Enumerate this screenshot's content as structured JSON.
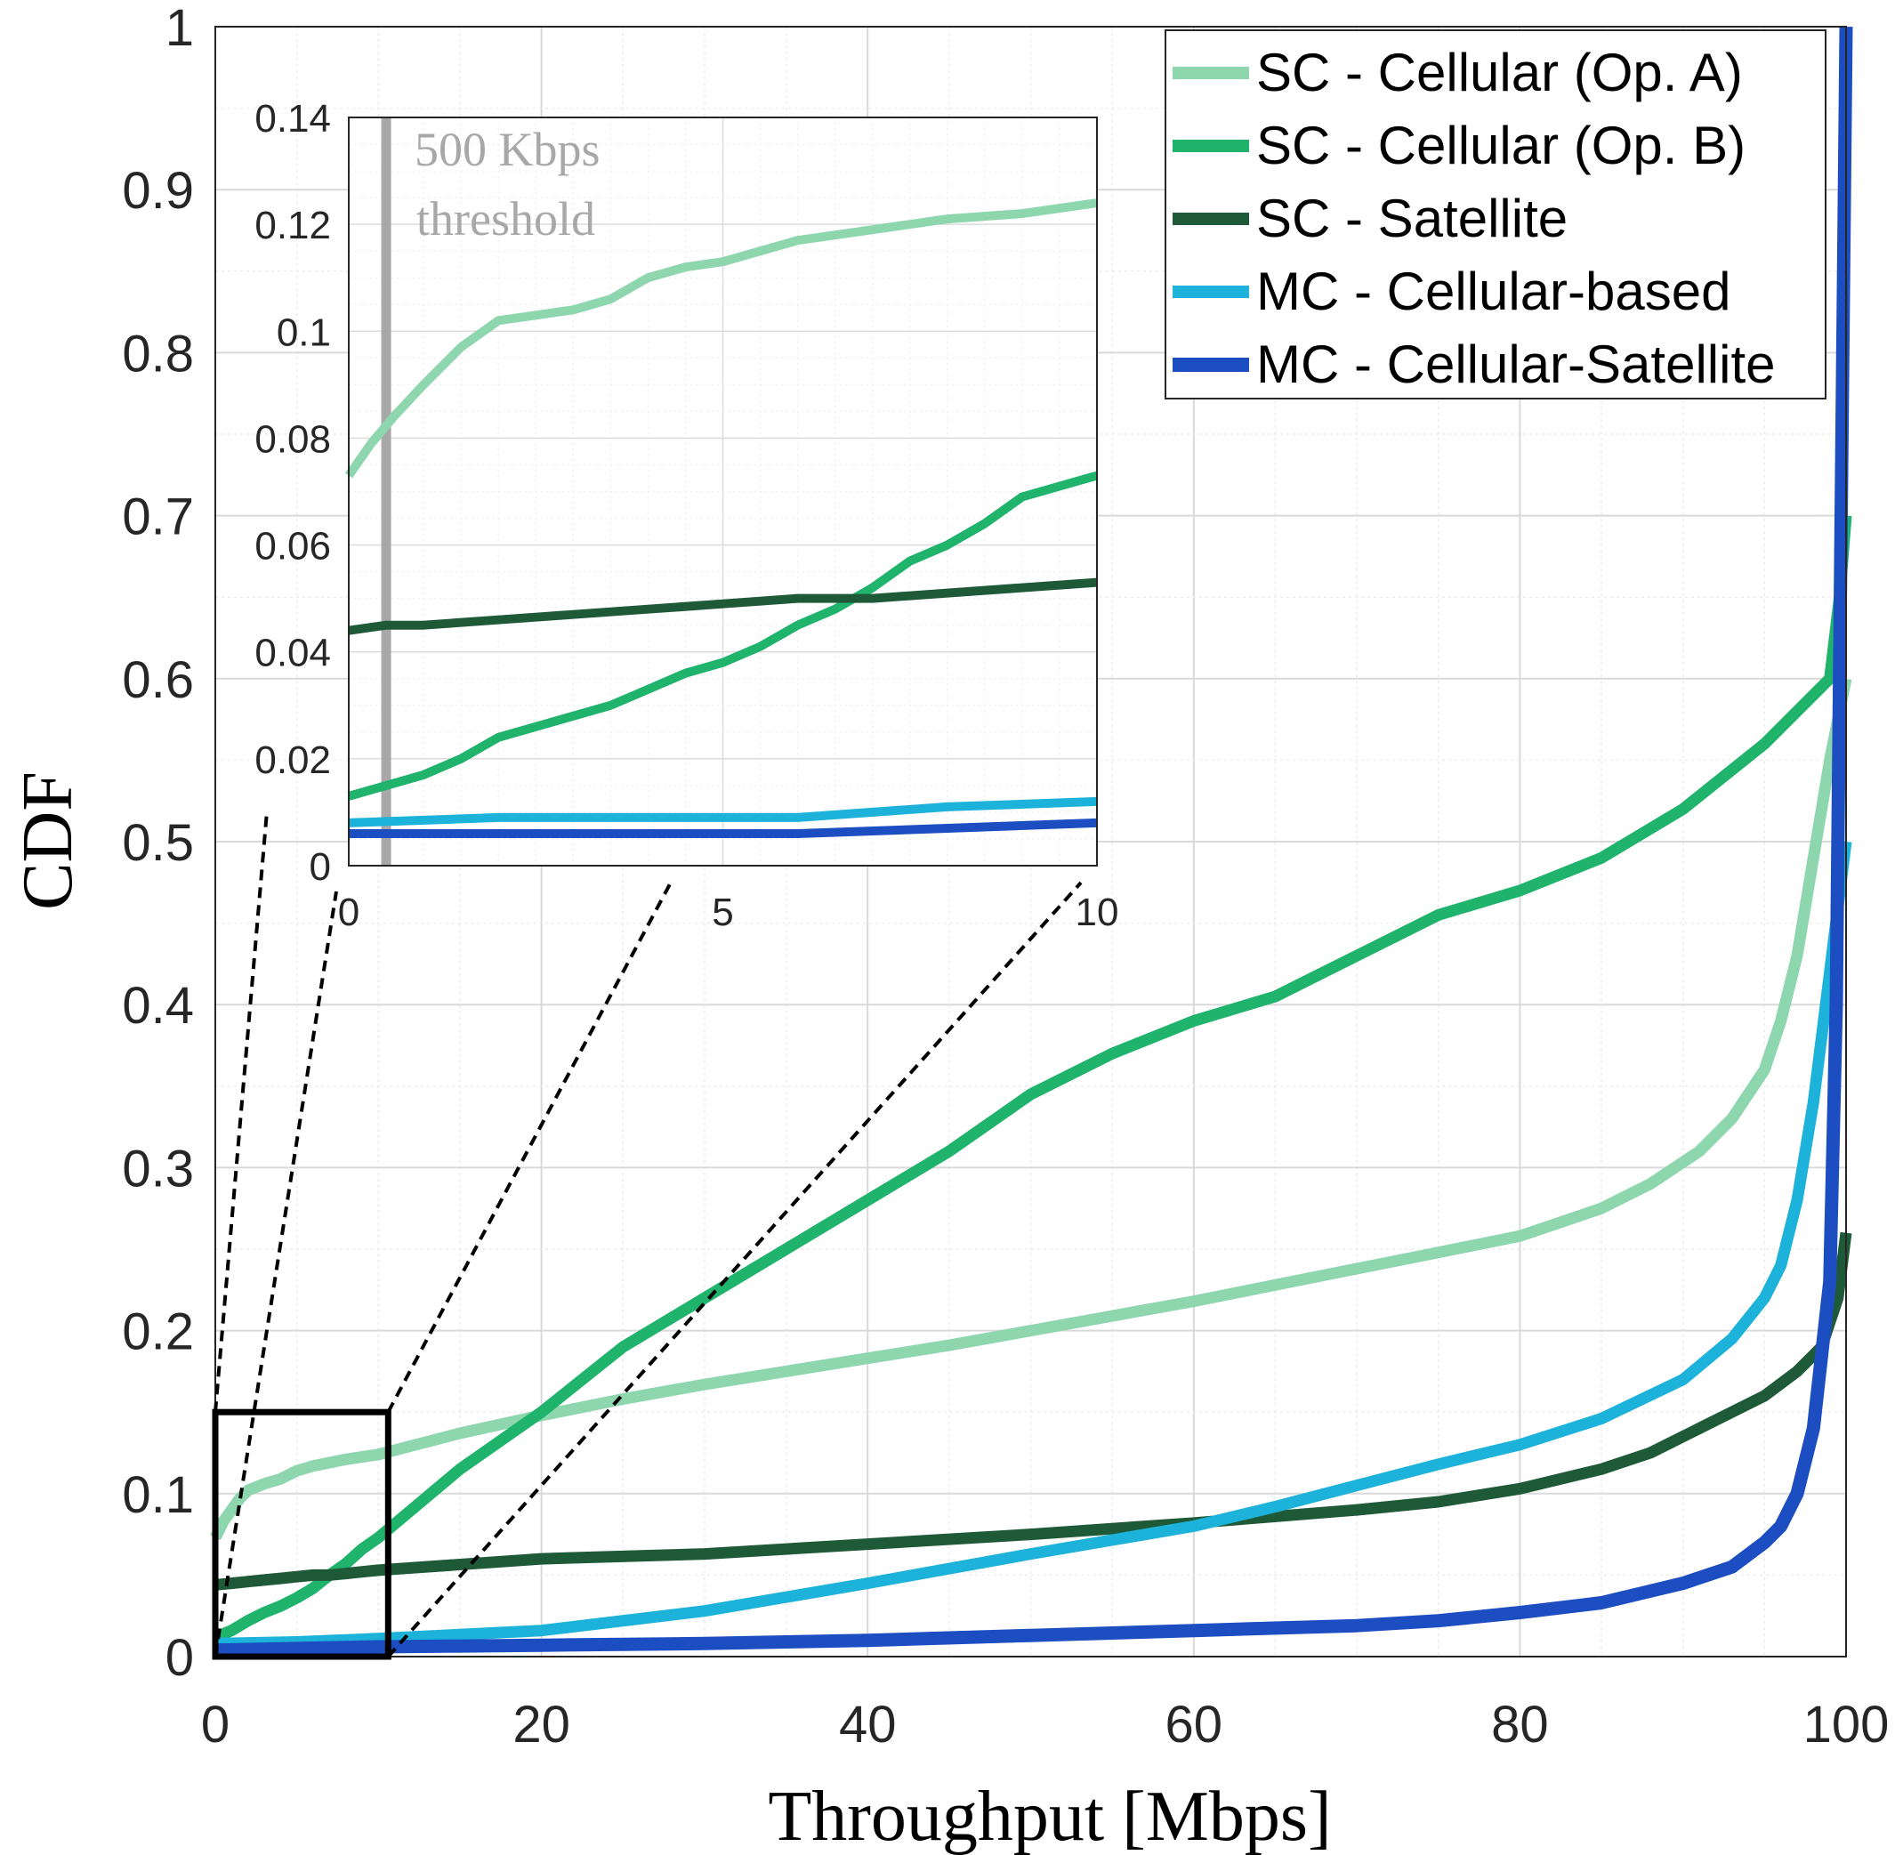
{
  "chart_data": [
    {
      "type": "line",
      "name": "main-plot",
      "xlabel": "Throughput [Mbps]",
      "ylabel": "CDF",
      "xlim": [
        0,
        100
      ],
      "ylim": [
        0,
        1
      ],
      "xticks": [
        "0",
        "20",
        "40",
        "60",
        "80",
        "100"
      ],
      "yticks": [
        "0",
        "0.1",
        "0.2",
        "0.3",
        "0.4",
        "0.5",
        "0.6",
        "0.7",
        "0.8",
        "0.9",
        "1"
      ],
      "grid": true,
      "legend_position": "top-right",
      "series": [
        {
          "name": "SC - Cellular (Op. A)",
          "color": "#8ed6ae",
          "points": [
            [
              0,
              0.073
            ],
            [
              0.5,
              0.083
            ],
            [
              1,
              0.09
            ],
            [
              1.5,
              0.097
            ],
            [
              2,
              0.102
            ],
            [
              3,
              0.106
            ],
            [
              4,
              0.109
            ],
            [
              5,
              0.114
            ],
            [
              6,
              0.117
            ],
            [
              7,
              0.119
            ],
            [
              8,
              0.121
            ],
            [
              10,
              0.124
            ],
            [
              15,
              0.137
            ],
            [
              20,
              0.148
            ],
            [
              25,
              0.158
            ],
            [
              30,
              0.167
            ],
            [
              35,
              0.175
            ],
            [
              40,
              0.183
            ],
            [
              45,
              0.191
            ],
            [
              50,
              0.2
            ],
            [
              55,
              0.209
            ],
            [
              60,
              0.218
            ],
            [
              65,
              0.228
            ],
            [
              70,
              0.238
            ],
            [
              75,
              0.248
            ],
            [
              80,
              0.258
            ],
            [
              85,
              0.275
            ],
            [
              88,
              0.29
            ],
            [
              91,
              0.31
            ],
            [
              93,
              0.33
            ],
            [
              95,
              0.36
            ],
            [
              96,
              0.39
            ],
            [
              97,
              0.43
            ],
            [
              98,
              0.49
            ],
            [
              99,
              0.55
            ],
            [
              100,
              0.6
            ]
          ]
        },
        {
          "name": "SC - Cellular (Op. B)",
          "color": "#1fb36c",
          "points": [
            [
              0,
              0.012
            ],
            [
              1,
              0.016
            ],
            [
              2,
              0.022
            ],
            [
              3,
              0.027
            ],
            [
              4,
              0.031
            ],
            [
              5,
              0.036
            ],
            [
              6,
              0.042
            ],
            [
              7,
              0.05
            ],
            [
              8,
              0.057
            ],
            [
              9,
              0.066
            ],
            [
              10,
              0.073
            ],
            [
              15,
              0.115
            ],
            [
              20,
              0.15
            ],
            [
              25,
              0.19
            ],
            [
              30,
              0.22
            ],
            [
              35,
              0.25
            ],
            [
              40,
              0.28
            ],
            [
              45,
              0.31
            ],
            [
              50,
              0.345
            ],
            [
              55,
              0.37
            ],
            [
              60,
              0.39
            ],
            [
              65,
              0.405
            ],
            [
              70,
              0.43
            ],
            [
              75,
              0.455
            ],
            [
              80,
              0.47
            ],
            [
              85,
              0.49
            ],
            [
              90,
              0.52
            ],
            [
              95,
              0.56
            ],
            [
              98,
              0.59
            ],
            [
              99,
              0.6
            ],
            [
              99.6,
              0.65
            ],
            [
              100,
              0.7
            ]
          ]
        },
        {
          "name": "SC - Satellite",
          "color": "#1f5a38",
          "points": [
            [
              0,
              0.044
            ],
            [
              1,
              0.045
            ],
            [
              2,
              0.046
            ],
            [
              3,
              0.047
            ],
            [
              4,
              0.048
            ],
            [
              5,
              0.049
            ],
            [
              6,
              0.05
            ],
            [
              7,
              0.05
            ],
            [
              8,
              0.051
            ],
            [
              9,
              0.052
            ],
            [
              10,
              0.053
            ],
            [
              20,
              0.06
            ],
            [
              30,
              0.063
            ],
            [
              40,
              0.069
            ],
            [
              50,
              0.075
            ],
            [
              60,
              0.082
            ],
            [
              70,
              0.09
            ],
            [
              75,
              0.095
            ],
            [
              80,
              0.103
            ],
            [
              85,
              0.115
            ],
            [
              88,
              0.125
            ],
            [
              91,
              0.14
            ],
            [
              93,
              0.15
            ],
            [
              95,
              0.16
            ],
            [
              97,
              0.175
            ],
            [
              98.5,
              0.19
            ],
            [
              99.5,
              0.22
            ],
            [
              100,
              0.26
            ]
          ]
        },
        {
          "name": "MC - Cellular-based",
          "color": "#1cb2d9",
          "points": [
            [
              0,
              0.008
            ],
            [
              5,
              0.009
            ],
            [
              10,
              0.011
            ],
            [
              20,
              0.016
            ],
            [
              30,
              0.028
            ],
            [
              40,
              0.045
            ],
            [
              50,
              0.063
            ],
            [
              60,
              0.08
            ],
            [
              65,
              0.092
            ],
            [
              70,
              0.105
            ],
            [
              75,
              0.118
            ],
            [
              80,
              0.13
            ],
            [
              85,
              0.146
            ],
            [
              90,
              0.17
            ],
            [
              93,
              0.195
            ],
            [
              95,
              0.22
            ],
            [
              96,
              0.24
            ],
            [
              97,
              0.28
            ],
            [
              98,
              0.34
            ],
            [
              99,
              0.42
            ],
            [
              100,
              0.5
            ]
          ]
        },
        {
          "name": "MC - Cellular-Satellite",
          "color": "#1c4ec2",
          "points": [
            [
              0,
              0.004
            ],
            [
              10,
              0.006
            ],
            [
              20,
              0.007
            ],
            [
              30,
              0.008
            ],
            [
              40,
              0.01
            ],
            [
              50,
              0.013
            ],
            [
              60,
              0.016
            ],
            [
              70,
              0.019
            ],
            [
              75,
              0.022
            ],
            [
              80,
              0.027
            ],
            [
              85,
              0.033
            ],
            [
              90,
              0.045
            ],
            [
              93,
              0.055
            ],
            [
              95,
              0.07
            ],
            [
              96,
              0.08
            ],
            [
              97,
              0.1
            ],
            [
              98,
              0.14
            ],
            [
              99,
              0.23
            ],
            [
              99.4,
              0.4
            ],
            [
              99.7,
              0.7
            ],
            [
              100,
              1.0
            ]
          ]
        }
      ]
    },
    {
      "type": "line",
      "name": "inset-zoom",
      "xlim": [
        0,
        10
      ],
      "ylim": [
        0,
        0.14
      ],
      "xticks": [
        "0",
        "5",
        "10"
      ],
      "yticks": [
        "0",
        "0.02",
        "0.04",
        "0.06",
        "0.08",
        "0.1",
        "0.12",
        "0.14"
      ],
      "threshold_x": 0.5,
      "threshold_label_line1": "500 Kbps",
      "threshold_label_line2": "threshold",
      "series": [
        {
          "name": "SC - Cellular (Op. A)",
          "color": "#8ed6ae",
          "points": [
            [
              0,
              0.073
            ],
            [
              0.3,
              0.079
            ],
            [
              0.6,
              0.084
            ],
            [
              1,
              0.09
            ],
            [
              1.5,
              0.097
            ],
            [
              2,
              0.102
            ],
            [
              2.5,
              0.103
            ],
            [
              3,
              0.104
            ],
            [
              3.5,
              0.106
            ],
            [
              4,
              0.11
            ],
            [
              4.5,
              0.112
            ],
            [
              5,
              0.113
            ],
            [
              5.5,
              0.115
            ],
            [
              6,
              0.117
            ],
            [
              7,
              0.119
            ],
            [
              8,
              0.121
            ],
            [
              9,
              0.122
            ],
            [
              10,
              0.124
            ]
          ]
        },
        {
          "name": "SC - Cellular (Op. B)",
          "color": "#1fb36c",
          "points": [
            [
              0,
              0.013
            ],
            [
              0.5,
              0.015
            ],
            [
              1,
              0.017
            ],
            [
              1.5,
              0.02
            ],
            [
              2,
              0.024
            ],
            [
              2.5,
              0.026
            ],
            [
              3,
              0.028
            ],
            [
              3.5,
              0.03
            ],
            [
              4,
              0.033
            ],
            [
              4.5,
              0.036
            ],
            [
              5,
              0.038
            ],
            [
              5.5,
              0.041
            ],
            [
              6,
              0.045
            ],
            [
              6.5,
              0.048
            ],
            [
              7,
              0.052
            ],
            [
              7.5,
              0.057
            ],
            [
              8,
              0.06
            ],
            [
              8.5,
              0.064
            ],
            [
              9,
              0.069
            ],
            [
              9.5,
              0.071
            ],
            [
              10,
              0.073
            ]
          ]
        },
        {
          "name": "SC - Satellite",
          "color": "#1f5a38",
          "points": [
            [
              0,
              0.044
            ],
            [
              0.5,
              0.045
            ],
            [
              1,
              0.045
            ],
            [
              2,
              0.046
            ],
            [
              3,
              0.047
            ],
            [
              4,
              0.048
            ],
            [
              5,
              0.049
            ],
            [
              6,
              0.05
            ],
            [
              7,
              0.05
            ],
            [
              8,
              0.051
            ],
            [
              9,
              0.052
            ],
            [
              10,
              0.053
            ]
          ]
        },
        {
          "name": "MC - Cellular-based",
          "color": "#1cb2d9",
          "points": [
            [
              0,
              0.008
            ],
            [
              2,
              0.009
            ],
            [
              4,
              0.009
            ],
            [
              6,
              0.009
            ],
            [
              8,
              0.011
            ],
            [
              10,
              0.012
            ]
          ]
        },
        {
          "name": "MC - Cellular-Satellite",
          "color": "#1c4ec2",
          "points": [
            [
              0,
              0.006
            ],
            [
              2,
              0.006
            ],
            [
              4,
              0.006
            ],
            [
              6,
              0.006
            ],
            [
              8,
              0.007
            ],
            [
              10,
              0.008
            ]
          ]
        }
      ]
    }
  ]
}
